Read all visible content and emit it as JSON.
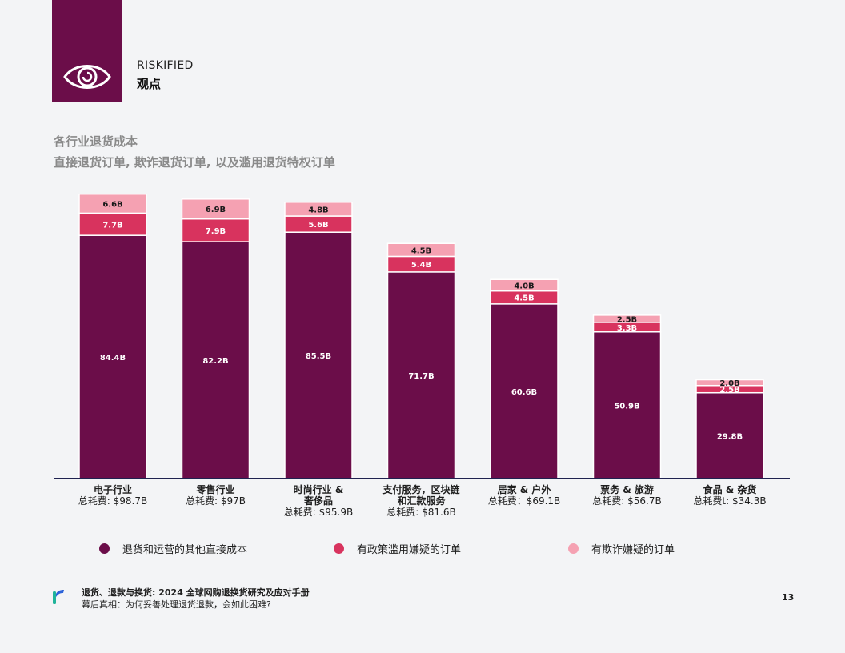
{
  "header": {
    "brand": "RISKIFIED",
    "brand_sub": "观点"
  },
  "chart_data": {
    "type": "bar",
    "stacked": true,
    "title": "各行业退货成本",
    "subtitle": "直接退货订单, 欺诈退货订单, 以及滥用退货特权订单",
    "categories": [
      [
        "电子行业"
      ],
      [
        "零售行业"
      ],
      [
        "时尚行业 &",
        "奢侈品"
      ],
      [
        "支付服务，区块链",
        "和汇款服务"
      ],
      [
        "居家 & 户外"
      ],
      [
        "票务 & 旅游"
      ],
      [
        "食品 & 杂货"
      ]
    ],
    "totals": [
      "总耗费: $98.7B",
      "总耗费: $97B",
      "总耗费: $95.9B",
      "总耗费: $81.6B",
      "总耗费：$69.1B",
      "总耗费: $56.7B",
      "总耗费t: $34.3B"
    ],
    "series": [
      {
        "name": "退货和运营的其他直接成本",
        "color": "#6b0d49",
        "values": [
          84.4,
          82.2,
          85.5,
          71.7,
          60.6,
          50.9,
          29.8
        ],
        "labels": [
          "84.4B",
          "82.2B",
          "85.5B",
          "71.7B",
          "60.6B",
          "50.9B",
          "29.8B"
        ]
      },
      {
        "name": "有政策滥用嫌疑的订单",
        "color": "#d8335e",
        "values": [
          7.7,
          7.9,
          5.6,
          5.4,
          4.5,
          3.3,
          2.5
        ],
        "labels": [
          "7.7B",
          "7.9B",
          "5.6B",
          "5.4B",
          "4.5B",
          "3.3B",
          "2.5B"
        ]
      },
      {
        "name": "有欺诈嫌疑的订单",
        "color": "#f5a1b2",
        "values": [
          6.6,
          6.9,
          4.8,
          4.5,
          4.0,
          2.5,
          2.0
        ],
        "labels": [
          "6.6B",
          "6.9B",
          "4.8B",
          "4.5B",
          "4.0B",
          "2.5B",
          "2.0B"
        ]
      }
    ],
    "ylim": [
      0,
      100
    ],
    "grid": false,
    "legend_position": "bottom"
  },
  "footer": {
    "line1": "退货、退款与换货: 2024 全球网购退换货研究及应对手册",
    "line2": "幕后真相：为何妥善处理退货退款，会如此困难?",
    "page": "13"
  }
}
